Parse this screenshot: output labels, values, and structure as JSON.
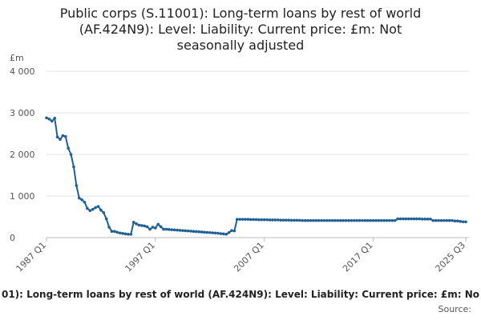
{
  "chart_data": {
    "type": "line",
    "title": "Public corps (S.11001): Long-term loans by rest of world (AF.424N9): Level: Liability: Current price: £m: Not seasonally adjusted",
    "y_unit": "£m",
    "footer_caption": "01): Long-term loans by rest of world (AF.424N9): Level: Liability: Current price: £m: No",
    "source": "Source:",
    "categories": [
      "1987 Q1",
      null,
      null,
      null,
      null,
      null,
      null,
      null,
      null,
      null,
      null,
      null,
      null,
      null,
      null,
      null,
      null,
      null,
      null,
      null,
      null,
      null,
      null,
      null,
      null,
      null,
      null,
      null,
      null,
      null,
      null,
      null,
      null,
      null,
      null,
      null,
      null,
      null,
      null,
      null,
      "1997 Q1",
      null,
      null,
      null,
      null,
      null,
      null,
      null,
      null,
      null,
      null,
      null,
      null,
      null,
      null,
      null,
      null,
      null,
      null,
      null,
      null,
      null,
      null,
      null,
      null,
      null,
      null,
      null,
      null,
      null,
      null,
      null,
      null,
      null,
      null,
      null,
      null,
      null,
      null,
      null,
      "2007 Q1",
      null,
      null,
      null,
      null,
      null,
      null,
      null,
      null,
      null,
      null,
      null,
      null,
      null,
      null,
      null,
      null,
      null,
      null,
      null,
      null,
      null,
      null,
      null,
      null,
      null,
      null,
      null,
      null,
      null,
      null,
      null,
      null,
      null,
      null,
      null,
      null,
      null,
      null,
      null,
      "2017 Q1",
      null,
      null,
      null,
      null,
      null,
      null,
      null,
      null,
      null,
      null,
      null,
      null,
      null,
      null,
      null,
      null,
      null,
      null,
      null,
      null,
      null,
      null,
      null,
      null,
      null,
      null,
      null,
      null,
      null,
      null,
      null,
      null,
      null,
      "2025 Q3"
    ],
    "series": [
      {
        "name": "Public corps long-term loans",
        "color": "#206095",
        "values": [
          2880,
          2850,
          2800,
          2870,
          2420,
          2360,
          2450,
          2430,
          2150,
          2000,
          1700,
          1250,
          950,
          910,
          850,
          700,
          650,
          680,
          720,
          750,
          660,
          600,
          450,
          250,
          150,
          150,
          130,
          110,
          100,
          90,
          80,
          80,
          370,
          330,
          300,
          290,
          280,
          260,
          200,
          250,
          230,
          320,
          260,
          200,
          200,
          195,
          190,
          185,
          180,
          175,
          170,
          165,
          160,
          155,
          150,
          145,
          140,
          135,
          130,
          125,
          120,
          115,
          110,
          105,
          95,
          90,
          80,
          120,
          170,
          160,
          440,
          440,
          440,
          440,
          440,
          435,
          435,
          435,
          430,
          430,
          430,
          430,
          425,
          425,
          425,
          425,
          420,
          420,
          420,
          420,
          415,
          415,
          415,
          415,
          410,
          410,
          410,
          410,
          410,
          410,
          410,
          410,
          410,
          410,
          410,
          410,
          410,
          410,
          410,
          410,
          410,
          410,
          410,
          410,
          410,
          410,
          410,
          410,
          410,
          410,
          410,
          410,
          410,
          410,
          410,
          410,
          410,
          410,
          410,
          450,
          450,
          450,
          450,
          450,
          450,
          450,
          450,
          450,
          445,
          445,
          445,
          445,
          410,
          410,
          410,
          410,
          410,
          410,
          410,
          410,
          400,
          400,
          390,
          380,
          380
        ]
      }
    ],
    "ylim": [
      0,
      4000
    ],
    "yticks": [
      0,
      {
        "value": 1000,
        "label": "1 000"
      },
      {
        "value": 2000,
        "label": "2 000"
      },
      {
        "value": 3000,
        "label": "3 000"
      },
      {
        "value": 4000,
        "label": "4 000"
      }
    ],
    "grid": true
  }
}
